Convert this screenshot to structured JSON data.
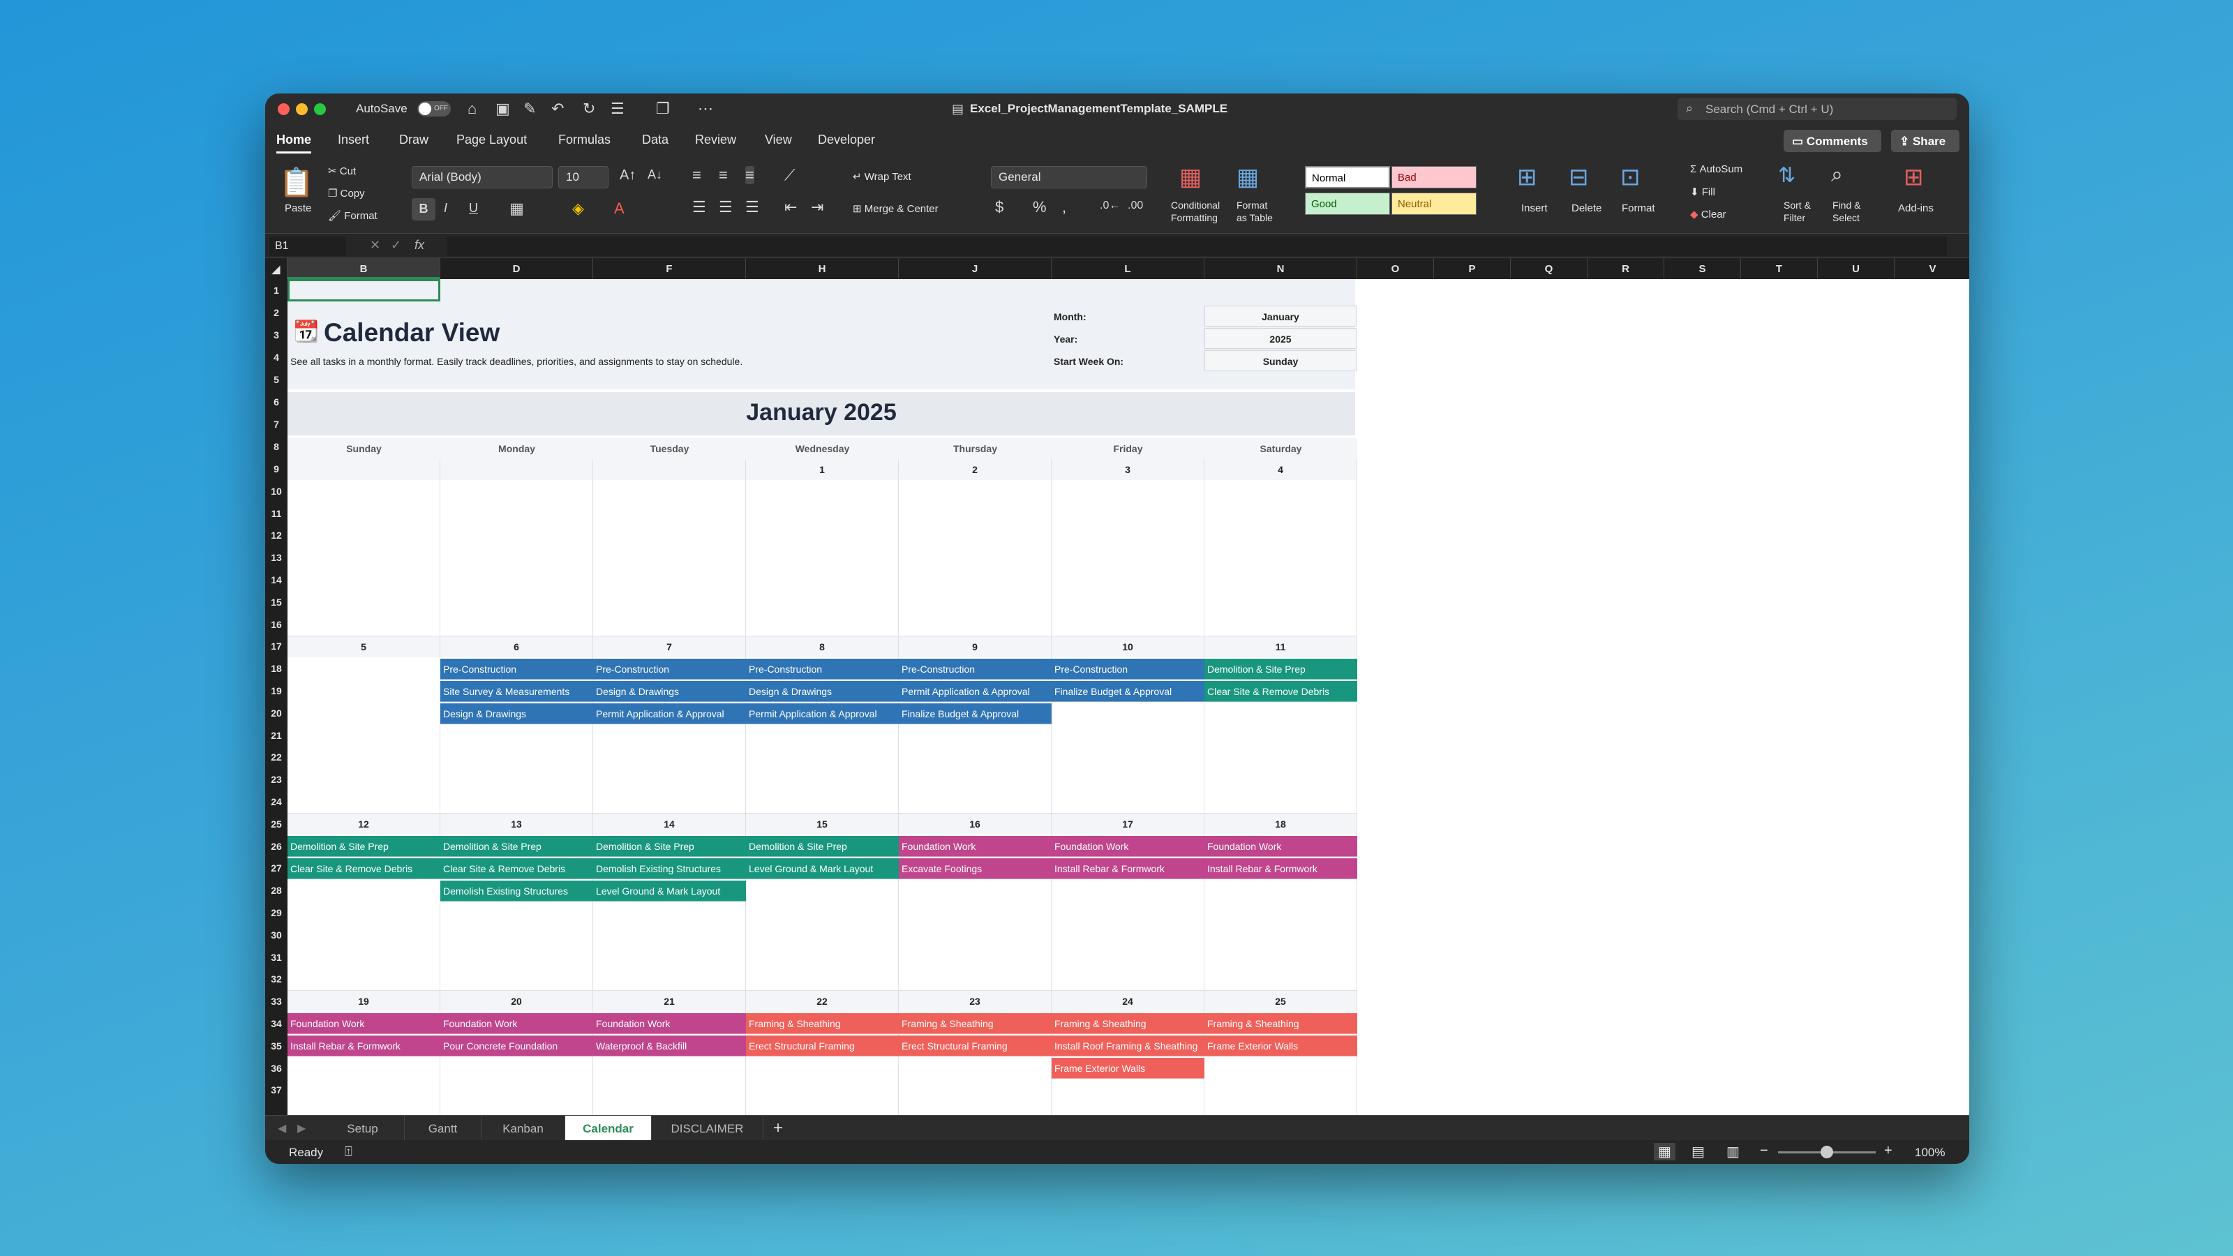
{
  "titlebar": {
    "autosave": "AutoSave",
    "toggle": "OFF",
    "filename": "Excel_ProjectManagementTemplate_SAMPLE",
    "search": "Search (Cmd + Ctrl + U)"
  },
  "menu": {
    "tabs": [
      "Home",
      "Insert",
      "Draw",
      "Page Layout",
      "Formulas",
      "Data",
      "Review",
      "View",
      "Developer"
    ],
    "comments": "Comments",
    "share": "Share"
  },
  "ribbon": {
    "paste": "Paste",
    "cut": "Cut",
    "copy": "Copy",
    "format": "Format",
    "font": "Arial (Body)",
    "size": "10",
    "wrap": "Wrap Text",
    "merge": "Merge & Center",
    "numfmt": "General",
    "cond1": "Conditional",
    "cond2": "Formatting",
    "fmt1": "Format",
    "fmt2": "as Table",
    "normal": "Normal",
    "bad": "Bad",
    "good": "Good",
    "neutral": "Neutral",
    "insert": "Insert",
    "delete": "Delete",
    "format2": "Format",
    "autosum": "AutoSum",
    "fill": "Fill",
    "clear": "Clear",
    "sort1": "Sort &",
    "sort2": "Filter",
    "find1": "Find &",
    "find2": "Select",
    "addins": "Add-ins"
  },
  "formula": {
    "namebox": "B1",
    "fx": "fx"
  },
  "columns": [
    "B",
    "D",
    "F",
    "H",
    "J",
    "L",
    "N",
    "O",
    "P",
    "Q",
    "R",
    "S",
    "T",
    "U",
    "V"
  ],
  "rows": [
    "1",
    "2",
    "3",
    "4",
    "5",
    "6",
    "7",
    "8",
    "9",
    "10",
    "11",
    "12",
    "13",
    "14",
    "15",
    "16",
    "17",
    "18",
    "19",
    "20",
    "21",
    "22",
    "23",
    "24",
    "25",
    "26",
    "27",
    "28",
    "29",
    "30",
    "31",
    "32",
    "33",
    "34",
    "35",
    "36",
    "37"
  ],
  "calendar": {
    "title": "Calendar View",
    "subtitle": "See all tasks in a monthly format. Easily track deadlines, priorities, and assignments to stay on schedule.",
    "meta": [
      {
        "label": "Month:",
        "value": "January"
      },
      {
        "label": "Year:",
        "value": "2025"
      },
      {
        "label": "Start Week On:",
        "value": "Sunday"
      }
    ],
    "month_title": "January 2025",
    "weekdays": [
      "Sunday",
      "Monday",
      "Tuesday",
      "Wednesday",
      "Thursday",
      "Friday",
      "Saturday"
    ],
    "weeks": [
      [
        {
          "day": "",
          "tasks": []
        },
        {
          "day": "",
          "tasks": []
        },
        {
          "day": "",
          "tasks": []
        },
        {
          "day": "1",
          "tasks": []
        },
        {
          "day": "2",
          "tasks": []
        },
        {
          "day": "3",
          "tasks": []
        },
        {
          "day": "4",
          "tasks": []
        }
      ],
      [
        {
          "day": "5",
          "tasks": []
        },
        {
          "day": "6",
          "tasks": [
            {
              "t": "Pre-Construction",
              "c": "blue"
            },
            {
              "t": "Site Survey & Measurements",
              "c": "blue"
            },
            {
              "t": "Design & Drawings",
              "c": "blue"
            }
          ]
        },
        {
          "day": "7",
          "tasks": [
            {
              "t": "Pre-Construction",
              "c": "blue"
            },
            {
              "t": "Design & Drawings",
              "c": "blue"
            },
            {
              "t": "Permit Application & Approval",
              "c": "blue"
            }
          ]
        },
        {
          "day": "8",
          "tasks": [
            {
              "t": "Pre-Construction",
              "c": "blue"
            },
            {
              "t": "Design & Drawings",
              "c": "blue"
            },
            {
              "t": "Permit Application & Approval",
              "c": "blue"
            }
          ]
        },
        {
          "day": "9",
          "tasks": [
            {
              "t": "Pre-Construction",
              "c": "blue"
            },
            {
              "t": "Permit Application & Approval",
              "c": "blue"
            },
            {
              "t": "Finalize Budget & Approval",
              "c": "blue"
            }
          ]
        },
        {
          "day": "10",
          "tasks": [
            {
              "t": "Pre-Construction",
              "c": "blue"
            },
            {
              "t": "Finalize Budget & Approval",
              "c": "blue"
            }
          ]
        },
        {
          "day": "11",
          "tasks": [
            {
              "t": "Demolition & Site Prep",
              "c": "teal"
            },
            {
              "t": "Clear Site & Remove Debris",
              "c": "teal"
            }
          ]
        }
      ],
      [
        {
          "day": "12",
          "tasks": [
            {
              "t": "Demolition & Site Prep",
              "c": "teal"
            },
            {
              "t": "Clear Site & Remove Debris",
              "c": "teal"
            }
          ]
        },
        {
          "day": "13",
          "tasks": [
            {
              "t": "Demolition & Site Prep",
              "c": "teal"
            },
            {
              "t": "Clear Site & Remove Debris",
              "c": "teal"
            },
            {
              "t": "Demolish Existing Structures",
              "c": "teal"
            }
          ]
        },
        {
          "day": "14",
          "tasks": [
            {
              "t": "Demolition & Site Prep",
              "c": "teal"
            },
            {
              "t": "Demolish Existing Structures",
              "c": "teal"
            },
            {
              "t": "Level Ground & Mark Layout",
              "c": "teal"
            }
          ]
        },
        {
          "day": "15",
          "tasks": [
            {
              "t": "Demolition & Site Prep",
              "c": "teal"
            },
            {
              "t": "Level Ground & Mark Layout",
              "c": "teal"
            }
          ]
        },
        {
          "day": "16",
          "tasks": [
            {
              "t": "Foundation Work",
              "c": "magenta"
            },
            {
              "t": "Excavate Footings",
              "c": "magenta"
            }
          ]
        },
        {
          "day": "17",
          "tasks": [
            {
              "t": "Foundation Work",
              "c": "magenta"
            },
            {
              "t": "Install Rebar & Formwork",
              "c": "magenta"
            }
          ]
        },
        {
          "day": "18",
          "tasks": [
            {
              "t": "Foundation Work",
              "c": "magenta"
            },
            {
              "t": "Install Rebar & Formwork",
              "c": "magenta"
            }
          ]
        }
      ],
      [
        {
          "day": "19",
          "tasks": [
            {
              "t": "Foundation Work",
              "c": "magenta"
            },
            {
              "t": "Install Rebar & Formwork",
              "c": "magenta"
            }
          ]
        },
        {
          "day": "20",
          "tasks": [
            {
              "t": "Foundation Work",
              "c": "magenta"
            },
            {
              "t": "Pour Concrete Foundation",
              "c": "magenta"
            }
          ]
        },
        {
          "day": "21",
          "tasks": [
            {
              "t": "Foundation Work",
              "c": "magenta"
            },
            {
              "t": "Waterproof & Backfill",
              "c": "magenta"
            }
          ]
        },
        {
          "day": "22",
          "tasks": [
            {
              "t": "Framing & Sheathing",
              "c": "coral"
            },
            {
              "t": "Erect Structural Framing",
              "c": "coral"
            }
          ]
        },
        {
          "day": "23",
          "tasks": [
            {
              "t": "Framing & Sheathing",
              "c": "coral"
            },
            {
              "t": "Erect Structural Framing",
              "c": "coral"
            }
          ]
        },
        {
          "day": "24",
          "tasks": [
            {
              "t": "Framing & Sheathing",
              "c": "coral"
            },
            {
              "t": "Install Roof Framing & Sheathing",
              "c": "coral"
            },
            {
              "t": "Frame Exterior Walls",
              "c": "coral"
            }
          ]
        },
        {
          "day": "25",
          "tasks": [
            {
              "t": "Framing & Sheathing",
              "c": "coral"
            },
            {
              "t": "Frame Exterior Walls",
              "c": "coral"
            }
          ]
        }
      ]
    ]
  },
  "colors": {
    "blue": "#2f74b5",
    "teal": "#18977e",
    "magenta": "#c0458c",
    "coral": "#f0605a"
  },
  "sheettabs": [
    "Setup",
    "Gantt",
    "Kanban",
    "Calendar",
    "DISCLAIMER"
  ],
  "active_sheet": "Calendar",
  "status": {
    "ready": "Ready",
    "zoom": "100%",
    "zoom_level": 0.5
  }
}
